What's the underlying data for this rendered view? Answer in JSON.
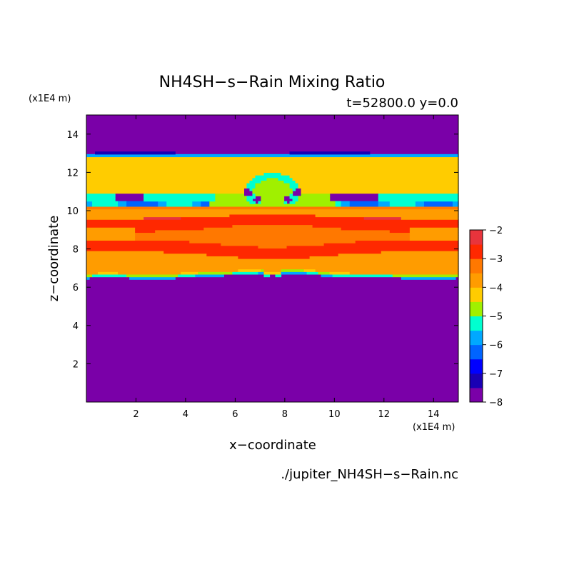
{
  "chart_data": {
    "type": "heatmap",
    "title": "NH4SH−s−Rain Mixing Ratio",
    "subtitle": "t=52800.0 y=0.0",
    "xlabel": "x−coordinate",
    "ylabel": "z−coordinate",
    "x_unit": "(x1E4 m)",
    "y_unit": "(x1E4 m)",
    "file_label": "./jupiter_NH4SH−s−Rain.nc",
    "xlim": [
      0,
      15
    ],
    "ylim": [
      0,
      15
    ],
    "x_ticks": [
      2,
      4,
      6,
      8,
      10,
      12,
      14
    ],
    "y_ticks": [
      2,
      4,
      6,
      8,
      10,
      12,
      14
    ],
    "colorbar": {
      "ticks": [
        "−2",
        "−3",
        "−4",
        "−5",
        "−6",
        "−7",
        "−8"
      ],
      "range": [
        -8,
        -2
      ],
      "levels": [
        {
          "lo": -8.0,
          "hi": -7.5,
          "color": "#7a00a8"
        },
        {
          "lo": -7.5,
          "hi": -7.0,
          "color": "#1a00b4"
        },
        {
          "lo": -7.0,
          "hi": -6.5,
          "color": "#0000ff"
        },
        {
          "lo": -6.5,
          "hi": -6.0,
          "color": "#0064ff"
        },
        {
          "lo": -6.0,
          "hi": -5.5,
          "color": "#00a8ff"
        },
        {
          "lo": -5.5,
          "hi": -5.0,
          "color": "#00ffd0"
        },
        {
          "lo": -5.0,
          "hi": -4.5,
          "color": "#a0f000"
        },
        {
          "lo": -4.5,
          "hi": -4.0,
          "color": "#ffcc00"
        },
        {
          "lo": -4.0,
          "hi": -3.5,
          "color": "#ff9c00"
        },
        {
          "lo": -3.5,
          "hi": -3.0,
          "color": "#ff7800"
        },
        {
          "lo": -3.0,
          "hi": -2.5,
          "color": "#ff2800"
        },
        {
          "lo": -2.5,
          "hi": -2.0,
          "color": "#e8343c"
        },
        {
          "lo": -2.0,
          "hi": -1.5,
          "color": "#ffaaaa"
        }
      ]
    },
    "background_value": -8
  }
}
